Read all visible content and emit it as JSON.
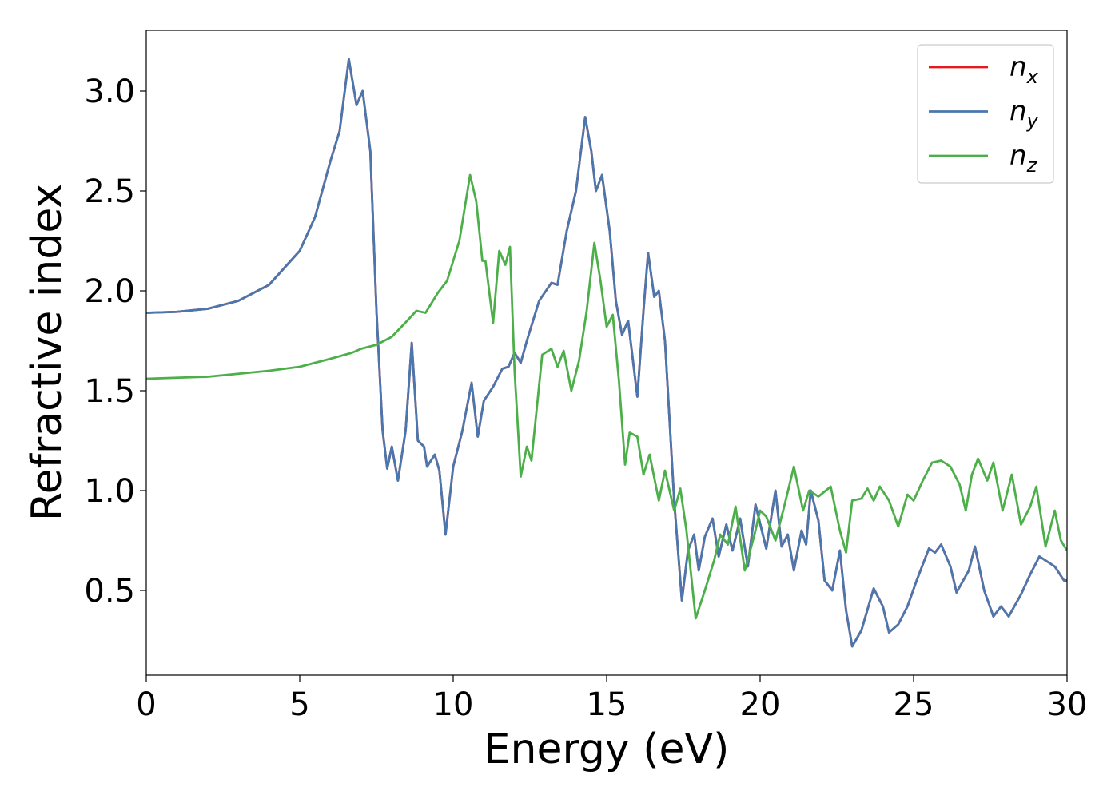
{
  "chart_data": {
    "type": "line",
    "xlabel": "Energy (eV)",
    "ylabel": "Refractive index",
    "xlim": [
      0,
      30
    ],
    "ylim": [
      0.076,
      3.304
    ],
    "xticks": [
      0,
      5,
      10,
      15,
      20,
      25,
      30
    ],
    "yticks": [
      {
        "value": 0.5,
        "label": "0.5"
      },
      {
        "value": 1.0,
        "label": "1.0"
      },
      {
        "value": 1.5,
        "label": "1.5"
      },
      {
        "value": 2.0,
        "label": "2.0"
      },
      {
        "value": 2.5,
        "label": "2.5"
      },
      {
        "value": 3.0,
        "label": "3.0"
      }
    ],
    "legend": "upper right",
    "grid": false,
    "series": [
      {
        "name": "n_x",
        "color": "#e41a1c",
        "x": [
          0,
          1,
          2,
          3,
          4,
          5,
          5.5,
          6,
          6.3,
          6.6,
          6.85,
          7.05,
          7.3,
          7.5,
          7.7,
          7.85,
          8.0,
          8.2,
          8.45,
          8.65,
          8.85,
          9.05,
          9.15,
          9.4,
          9.55,
          9.75,
          10.0,
          10.3,
          10.6,
          10.8,
          11.0,
          11.3,
          11.6,
          11.8,
          12.0,
          12.2,
          12.4,
          12.8,
          13.2,
          13.4,
          13.7,
          14.0,
          14.3,
          14.5,
          14.65,
          14.85,
          15.1,
          15.3,
          15.5,
          15.7,
          16.0,
          16.2,
          16.35,
          16.55,
          16.7,
          16.9,
          17.2,
          17.45,
          17.65,
          17.85,
          18.0,
          18.2,
          18.45,
          18.65,
          18.9,
          19.1,
          19.35,
          19.6,
          19.85,
          20.2,
          20.5,
          20.7,
          20.9,
          21.1,
          21.35,
          21.5,
          21.65,
          21.9,
          22.1,
          22.35,
          22.6,
          22.8,
          23.0,
          23.3,
          23.7,
          24.0,
          24.2,
          24.5,
          24.8,
          25.1,
          25.5,
          25.7,
          25.9,
          26.2,
          26.4,
          26.8,
          27.0,
          27.3,
          27.6,
          27.85,
          28.1,
          28.5,
          28.8,
          29.1,
          29.3,
          29.6,
          29.9,
          30.0
        ],
        "values": [
          1.89,
          1.895,
          1.91,
          1.95,
          2.03,
          2.2,
          2.37,
          2.65,
          2.8,
          3.16,
          2.93,
          3.0,
          2.7,
          1.9,
          1.3,
          1.11,
          1.22,
          1.05,
          1.3,
          1.74,
          1.25,
          1.22,
          1.12,
          1.18,
          1.1,
          0.78,
          1.12,
          1.3,
          1.54,
          1.27,
          1.45,
          1.52,
          1.61,
          1.62,
          1.69,
          1.64,
          1.75,
          1.95,
          2.04,
          2.03,
          2.3,
          2.5,
          2.87,
          2.7,
          2.5,
          2.58,
          2.3,
          1.95,
          1.78,
          1.85,
          1.47,
          1.9,
          2.19,
          1.97,
          2.0,
          1.75,
          0.95,
          0.45,
          0.7,
          0.78,
          0.6,
          0.77,
          0.86,
          0.67,
          0.83,
          0.7,
          0.86,
          0.62,
          0.93,
          0.71,
          1.0,
          0.72,
          0.78,
          0.6,
          0.8,
          0.73,
          1.0,
          0.85,
          0.55,
          0.5,
          0.7,
          0.4,
          0.22,
          0.3,
          0.51,
          0.42,
          0.29,
          0.33,
          0.42,
          0.55,
          0.71,
          0.69,
          0.73,
          0.62,
          0.49,
          0.6,
          0.72,
          0.5,
          0.37,
          0.42,
          0.37,
          0.48,
          0.58,
          0.67,
          0.65,
          0.62,
          0.55,
          0.55
        ]
      },
      {
        "name": "n_y",
        "color": "#4a77ad",
        "x": [
          0,
          1,
          2,
          3,
          4,
          5,
          5.5,
          6,
          6.3,
          6.6,
          6.85,
          7.05,
          7.3,
          7.5,
          7.7,
          7.85,
          8.0,
          8.2,
          8.45,
          8.65,
          8.85,
          9.05,
          9.15,
          9.4,
          9.55,
          9.75,
          10.0,
          10.3,
          10.6,
          10.8,
          11.0,
          11.3,
          11.6,
          11.8,
          12.0,
          12.2,
          12.4,
          12.8,
          13.2,
          13.4,
          13.7,
          14.0,
          14.3,
          14.5,
          14.65,
          14.85,
          15.1,
          15.3,
          15.5,
          15.7,
          16.0,
          16.2,
          16.35,
          16.55,
          16.7,
          16.9,
          17.2,
          17.45,
          17.65,
          17.85,
          18.0,
          18.2,
          18.45,
          18.65,
          18.9,
          19.1,
          19.35,
          19.6,
          19.85,
          20.2,
          20.5,
          20.7,
          20.9,
          21.1,
          21.35,
          21.5,
          21.65,
          21.9,
          22.1,
          22.35,
          22.6,
          22.8,
          23.0,
          23.3,
          23.7,
          24.0,
          24.2,
          24.5,
          24.8,
          25.1,
          25.5,
          25.7,
          25.9,
          26.2,
          26.4,
          26.8,
          27.0,
          27.3,
          27.6,
          27.85,
          28.1,
          28.5,
          28.8,
          29.1,
          29.3,
          29.6,
          29.9,
          30.0
        ],
        "values": [
          1.89,
          1.895,
          1.91,
          1.95,
          2.03,
          2.2,
          2.37,
          2.65,
          2.8,
          3.16,
          2.93,
          3.0,
          2.7,
          1.9,
          1.3,
          1.11,
          1.22,
          1.05,
          1.3,
          1.74,
          1.25,
          1.22,
          1.12,
          1.18,
          1.1,
          0.78,
          1.12,
          1.3,
          1.54,
          1.27,
          1.45,
          1.52,
          1.61,
          1.62,
          1.69,
          1.64,
          1.75,
          1.95,
          2.04,
          2.03,
          2.3,
          2.5,
          2.87,
          2.7,
          2.5,
          2.58,
          2.3,
          1.95,
          1.78,
          1.85,
          1.47,
          1.9,
          2.19,
          1.97,
          2.0,
          1.75,
          0.95,
          0.45,
          0.7,
          0.78,
          0.6,
          0.77,
          0.86,
          0.67,
          0.83,
          0.7,
          0.86,
          0.62,
          0.93,
          0.71,
          1.0,
          0.72,
          0.78,
          0.6,
          0.8,
          0.73,
          1.0,
          0.85,
          0.55,
          0.5,
          0.7,
          0.4,
          0.22,
          0.3,
          0.51,
          0.42,
          0.29,
          0.33,
          0.42,
          0.55,
          0.71,
          0.69,
          0.73,
          0.62,
          0.49,
          0.6,
          0.72,
          0.5,
          0.37,
          0.42,
          0.37,
          0.48,
          0.58,
          0.67,
          0.65,
          0.62,
          0.55,
          0.55
        ]
      },
      {
        "name": "n_z",
        "color": "#4daf4a",
        "x": [
          0,
          2,
          4,
          5,
          6,
          6.7,
          7.0,
          7.5,
          8.0,
          8.5,
          8.8,
          9.1,
          9.5,
          9.8,
          10.2,
          10.55,
          10.75,
          10.95,
          11.05,
          11.3,
          11.5,
          11.7,
          11.85,
          12.0,
          12.2,
          12.4,
          12.55,
          12.9,
          13.2,
          13.4,
          13.6,
          13.85,
          14.1,
          14.35,
          14.6,
          14.8,
          15.0,
          15.2,
          15.4,
          15.6,
          15.75,
          16.0,
          16.2,
          16.4,
          16.7,
          16.9,
          17.2,
          17.4,
          17.6,
          17.9,
          18.2,
          18.5,
          18.7,
          18.95,
          19.2,
          19.5,
          19.8,
          20.0,
          20.2,
          20.5,
          20.8,
          21.1,
          21.4,
          21.6,
          21.9,
          22.3,
          22.6,
          22.8,
          23.0,
          23.3,
          23.5,
          23.7,
          23.9,
          24.2,
          24.5,
          24.8,
          25.0,
          25.3,
          25.6,
          25.9,
          26.2,
          26.5,
          26.7,
          26.9,
          27.1,
          27.4,
          27.6,
          27.9,
          28.2,
          28.5,
          28.8,
          29.0,
          29.3,
          29.6,
          29.8,
          30.0
        ],
        "values": [
          1.56,
          1.57,
          1.6,
          1.62,
          1.66,
          1.69,
          1.71,
          1.73,
          1.77,
          1.85,
          1.9,
          1.89,
          1.99,
          2.05,
          2.25,
          2.58,
          2.45,
          2.15,
          2.15,
          1.84,
          2.2,
          2.13,
          2.22,
          1.6,
          1.07,
          1.22,
          1.15,
          1.68,
          1.71,
          1.62,
          1.7,
          1.5,
          1.65,
          1.9,
          2.24,
          2.05,
          1.82,
          1.88,
          1.55,
          1.13,
          1.29,
          1.27,
          1.08,
          1.18,
          0.95,
          1.1,
          0.9,
          1.01,
          0.8,
          0.36,
          0.5,
          0.65,
          0.78,
          0.73,
          0.92,
          0.6,
          0.77,
          0.9,
          0.87,
          0.75,
          0.93,
          1.12,
          0.9,
          1.0,
          0.97,
          1.02,
          0.8,
          0.69,
          0.95,
          0.96,
          1.01,
          0.95,
          1.02,
          0.95,
          0.82,
          0.98,
          0.95,
          1.05,
          1.14,
          1.15,
          1.12,
          1.03,
          0.9,
          1.08,
          1.16,
          1.05,
          1.14,
          0.9,
          1.08,
          0.83,
          0.92,
          1.02,
          0.72,
          0.9,
          0.75,
          0.7
        ]
      }
    ]
  }
}
